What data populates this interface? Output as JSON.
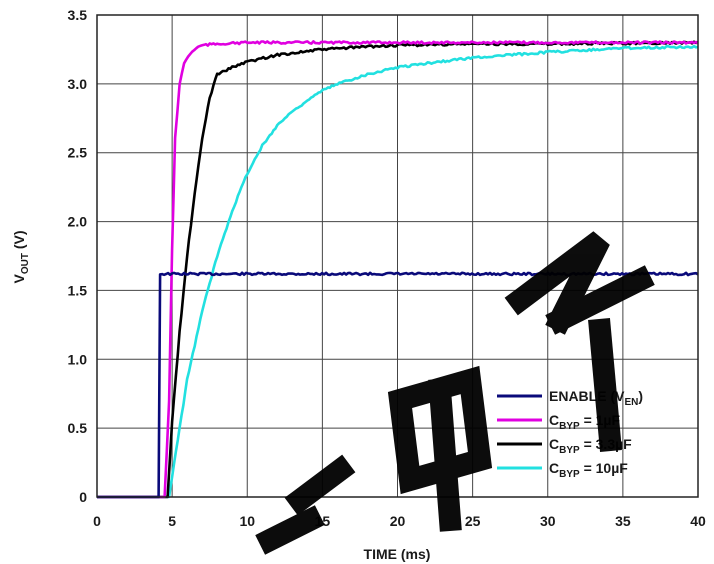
{
  "chart_data": {
    "type": "line",
    "title": "",
    "xlabel": "TIME (ms)",
    "ylabel": "V_OUT (V)",
    "xlim": [
      0,
      40
    ],
    "ylim": [
      0,
      3.5
    ],
    "x_ticks": [
      "0",
      "5",
      "10",
      "15",
      "20",
      "25",
      "30",
      "35",
      "40"
    ],
    "y_ticks": [
      "0",
      "0.5",
      "1.0",
      "1.5",
      "2.0",
      "2.5",
      "3.0",
      "3.5"
    ],
    "grid": true,
    "legend_position": "bottom-right",
    "series": [
      {
        "name": "ENABLE (V_EN)",
        "color": "#0a0a7a",
        "x": [
          0,
          4.1,
          4.2,
          40
        ],
        "y": [
          0,
          0,
          1.62,
          1.62
        ]
      },
      {
        "name": "C_BYP = 1µF",
        "color": "#e000e0",
        "x": [
          0,
          4.5,
          4.8,
          5.0,
          5.2,
          5.5,
          5.8,
          6.2,
          6.6,
          7.0,
          8.0,
          10.0,
          40
        ],
        "y": [
          0,
          0,
          0.7,
          1.8,
          2.6,
          3.0,
          3.15,
          3.22,
          3.26,
          3.28,
          3.29,
          3.3,
          3.3
        ]
      },
      {
        "name": "C_BYP = 3.3µF",
        "color": "#000000",
        "x": [
          0,
          4.7,
          5.0,
          5.5,
          6.0,
          6.5,
          7.0,
          7.5,
          8.0,
          9.0,
          10.0,
          12.0,
          15.0,
          18.0,
          20.0,
          25.0,
          30.0,
          40.0
        ],
        "y": [
          0,
          0,
          0.55,
          1.2,
          1.75,
          2.2,
          2.6,
          2.9,
          3.07,
          3.12,
          3.16,
          3.21,
          3.25,
          3.27,
          3.28,
          3.29,
          3.29,
          3.3
        ]
      },
      {
        "name": "C_BYP = 10µF",
        "color": "#22e0e0",
        "x": [
          0,
          4.8,
          5.0,
          6.0,
          7.0,
          8.0,
          9.0,
          10.0,
          11.0,
          12.0,
          13.0,
          14.0,
          15.0,
          16.0,
          18.0,
          20.0,
          22.0,
          25.0,
          30.0,
          35.0,
          40.0
        ],
        "y": [
          0,
          0,
          0.15,
          0.85,
          1.35,
          1.75,
          2.08,
          2.35,
          2.55,
          2.7,
          2.8,
          2.88,
          2.95,
          3.0,
          3.07,
          3.12,
          3.15,
          3.19,
          3.23,
          3.26,
          3.27
        ]
      }
    ]
  },
  "legend": [
    {
      "main": "ENABLE (V",
      "sub": "EN",
      "tail": ")"
    },
    {
      "main": "C",
      "sub": "BYP",
      "tail": " = 1µF"
    },
    {
      "main": "C",
      "sub": "BYP",
      "tail": " = 3.3µF"
    },
    {
      "main": "C",
      "sub": "BYP",
      "tail": " = 10µF"
    }
  ],
  "axis_titles": {
    "x": "TIME (ms)",
    "y_main": "V",
    "y_sub": "OUT",
    "y_tail": " (V)"
  },
  "watermark_text": "微电子"
}
